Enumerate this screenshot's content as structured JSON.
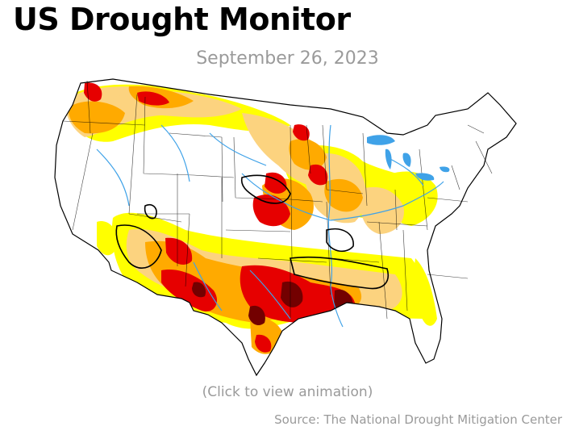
{
  "header": {
    "title": "US Drought Monitor",
    "date": "September 26, 2023"
  },
  "map": {
    "region": "Contiguous United States",
    "drought_colors": {
      "D0_abnormally_dry": "#ffff00",
      "D1_moderate": "#fcd37f",
      "D2_severe": "#ffaa00",
      "D3_extreme": "#e60000",
      "D4_exceptional": "#730000"
    },
    "water_color": "#3fa2e8"
  },
  "footer": {
    "animation_link": "(Click to view animation)",
    "source": "Source: The National Drought Mitigation Center"
  }
}
